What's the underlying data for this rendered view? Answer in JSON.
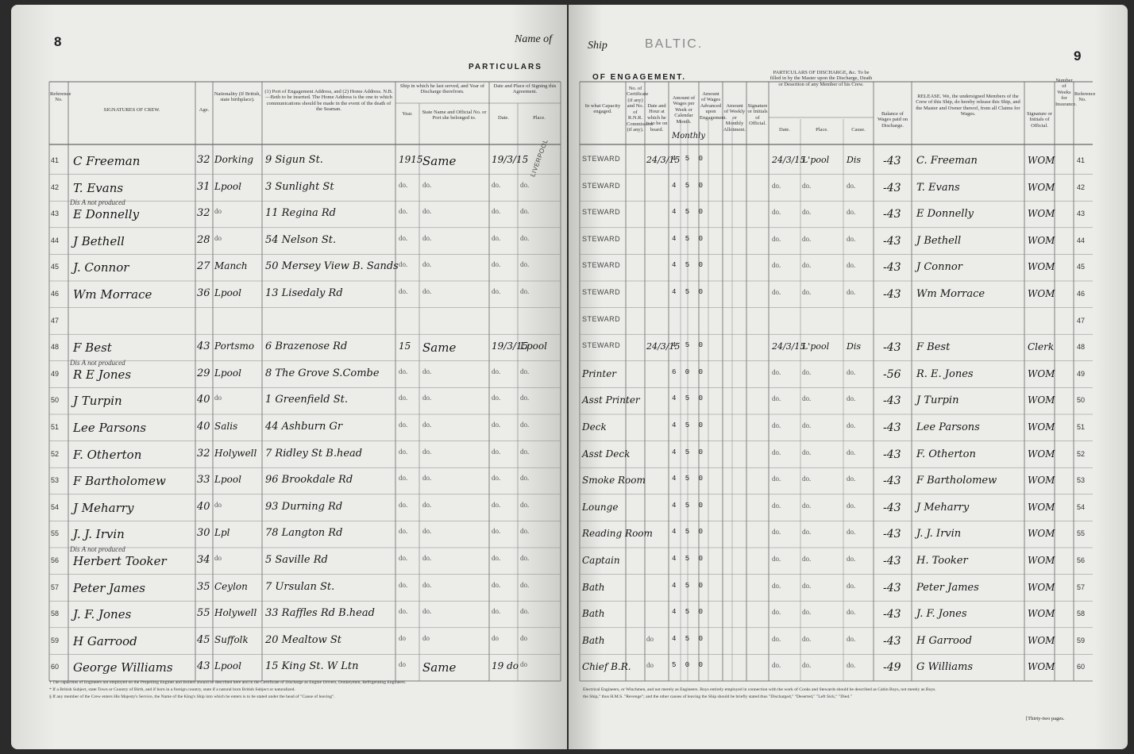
{
  "left_page": {
    "page_number": "8",
    "name_of": "Name of",
    "heading": "PARTICULARS",
    "column_headers": [
      "Reference No.",
      "SIGNATURES OF CREW.",
      "Age.",
      "Nationality (If British, state birthplace).",
      "(1) Port of Engagement Address, and (2) Home Address. N.B.—Both to be inserted. The Home Address is the one to which communications should be made in the event of the death of the Seaman.",
      "Ship in which he last served, and Year of Discharge therefrom.",
      "Date and Place of Signing this Agreement.",
      "Year.",
      "State Name and Official No. or Port she belonged to.",
      "Date.",
      "Place."
    ],
    "rows": [
      {
        "ref": "41",
        "name": "C Freeman",
        "age": "32",
        "nationality": "Dorking",
        "address": "9 Sigun St.",
        "year": "1915",
        "ship": "Same",
        "date": "19/3/15",
        "place": "LIVERPOOL"
      },
      {
        "ref": "42",
        "name": "T. Evans",
        "age": "31",
        "nationality": "Lpool",
        "address": "3 Sunlight St",
        "year": "do.",
        "ship": "do.",
        "date": "do.",
        "place": "do."
      },
      {
        "ref": "43",
        "note": "Dis A not produced",
        "name": "E Donnelly",
        "age": "32",
        "nationality": "do",
        "address": "11 Regina Rd",
        "year": "do.",
        "ship": "do.",
        "date": "do.",
        "place": "do."
      },
      {
        "ref": "44",
        "name": "J Bethell",
        "age": "28",
        "nationality": "do",
        "address": "54 Nelson St.",
        "year": "do.",
        "ship": "do.",
        "date": "do.",
        "place": "do."
      },
      {
        "ref": "45",
        "name": "J. Connor",
        "age": "27",
        "nationality": "Manch",
        "address": "50 Mersey View B. Sands",
        "year": "do.",
        "ship": "do.",
        "date": "do.",
        "place": "do."
      },
      {
        "ref": "46",
        "name": "Wm Morrace",
        "age": "36",
        "nationality": "Lpool",
        "address": "13 Lisedaly Rd",
        "year": "do.",
        "ship": "do.",
        "date": "do.",
        "place": "do."
      },
      {
        "ref": "47"
      },
      {
        "ref": "48",
        "name": "F Best",
        "age": "43",
        "nationality": "Portsmo",
        "address": "6 Brazenose Rd",
        "year": "15",
        "ship": "Same",
        "date": "19/3/15",
        "place": "Lpool"
      },
      {
        "ref": "49",
        "note": "Dis A not produced",
        "name": "R E Jones",
        "age": "29",
        "nationality": "Lpool",
        "address": "8 The Grove S.Combe",
        "year": "do.",
        "ship": "do.",
        "date": "do.",
        "place": "do."
      },
      {
        "ref": "50",
        "name": "J Turpin",
        "age": "40",
        "nationality": "do",
        "address": "1 Greenfield St.",
        "year": "do.",
        "ship": "do.",
        "date": "do.",
        "place": "do."
      },
      {
        "ref": "51",
        "name": "Lee Parsons",
        "age": "40",
        "nationality": "Salis",
        "address": "44 Ashburn Gr",
        "year": "do.",
        "ship": "do.",
        "date": "do.",
        "place": "do."
      },
      {
        "ref": "52",
        "name": "F. Otherton",
        "age": "32",
        "nationality": "Holywell",
        "address": "7 Ridley St B.head",
        "year": "do.",
        "ship": "do.",
        "date": "do.",
        "place": "do."
      },
      {
        "ref": "53",
        "name": "F Bartholomew",
        "age": "33",
        "nationality": "Lpool",
        "address": "96 Brookdale Rd",
        "year": "do.",
        "ship": "do.",
        "date": "do.",
        "place": "do."
      },
      {
        "ref": "54",
        "name": "J Meharry",
        "age": "40",
        "nationality": "do",
        "address": "93 Durning Rd",
        "year": "do.",
        "ship": "do.",
        "date": "do.",
        "place": "do."
      },
      {
        "ref": "55",
        "name": "J. J. Irvin",
        "age": "30",
        "nationality": "Lpl",
        "address": "78 Langton Rd",
        "year": "do.",
        "ship": "do.",
        "date": "do.",
        "place": "do."
      },
      {
        "ref": "56",
        "note": "Dis A not produced",
        "name": "Herbert Tooker",
        "age": "34",
        "nationality": "do",
        "address": "5 Saville Rd",
        "year": "do.",
        "ship": "do.",
        "date": "do.",
        "place": "do."
      },
      {
        "ref": "57",
        "name": "Peter James",
        "age": "35",
        "nationality": "Ceylon",
        "address": "7 Ursulan St.",
        "year": "do.",
        "ship": "do.",
        "date": "do.",
        "place": "do."
      },
      {
        "ref": "58",
        "name": "J. F. Jones",
        "age": "55",
        "nationality": "Holywell",
        "address": "33 Raffles Rd B.head",
        "year": "do.",
        "ship": "do.",
        "date": "do.",
        "place": "do."
      },
      {
        "ref": "59",
        "name": "H Garrood",
        "age": "45",
        "nationality": "Suffolk",
        "address": "20 Mealtow St",
        "year": "do",
        "ship": "do",
        "date": "do",
        "place": "do"
      },
      {
        "ref": "60",
        "name": "George Williams",
        "age": "43",
        "nationality": "Lpool",
        "address": "15 King St. W Ltn",
        "year": "do",
        "ship": "Same",
        "date": "19 do",
        "place": "do"
      }
    ],
    "footnotes": [
      "† The capacities of Engineers not employed on the Propelling Engines and Boilers should be described here and in the Certificate of Discharge as Engine Drivers, Donkeymen, Refrigerating Engineers.",
      "* If a British Subject, state Town or Country of Birth, and if born in a foreign country, state if a natural born British Subject or naturalized.",
      "§ If any member of the Crew enters His Majesty's Service, the Name of the King's Ship into which he enters is to be stated under the head of \"Cause of leaving\"."
    ]
  },
  "right_page": {
    "page_number": "9",
    "ship_label": "Ship",
    "ship_name": "BALTIC.",
    "heading": "OF ENGAGEMENT.",
    "column_headers": [
      "In what Capacity engaged.",
      "No. of Certificate (if any) and No. of R.N.R. Commission (if any).",
      "Date and Hour at which he is to be on board.",
      "Amount of Wages per Week or Calendar Month.",
      "Amount of Wages Advanced upon Engagement.",
      "Amount of Weekly or Monthly Allotment.",
      "Signature or Initials of Official.",
      "PARTICULARS OF DISCHARGE, &c. To be filled in by the Master upon the Discharge, Death or Desertion of any Member of his Crew.",
      "Date.",
      "Place.",
      "Cause.",
      "Balance of Wages paid on Discharge.",
      "RELEASE. We, the undersigned Members of the Crew of this Ship, do hereby release this Ship, and the Master and Owner thereof, from all Claims for Wages.",
      "Signature or Initials of Official.",
      "Number of Weeks for Insurance.",
      "Reference No."
    ],
    "wages_note": "Monthly",
    "rows": [
      {
        "capacity": "STEWARD",
        "date_hour": "24/3/15",
        "wages": "4 5 0",
        "d_date": "24/3/15",
        "d_place": "L'pool",
        "cause": "Dis",
        "balance": "-43",
        "release": "C. Freeman",
        "initials": "WOM"
      },
      {
        "capacity": "STEWARD",
        "wages": "4 5 0",
        "d_date": "do.",
        "d_place": "do.",
        "cause": "do.",
        "balance": "-43",
        "release": "T. Evans",
        "initials": "WOM"
      },
      {
        "capacity": "STEWARD",
        "wages": "4 5 0",
        "d_date": "do.",
        "d_place": "do.",
        "cause": "do.",
        "balance": "-43",
        "release": "E Donnelly",
        "initials": "WOM"
      },
      {
        "capacity": "STEWARD",
        "wages": "4 5 0",
        "d_date": "do.",
        "d_place": "do.",
        "cause": "do.",
        "balance": "-43",
        "release": "J Bethell",
        "initials": "WOM"
      },
      {
        "capacity": "STEWARD",
        "wages": "4 5 0",
        "d_date": "do.",
        "d_place": "do.",
        "cause": "do.",
        "balance": "-43",
        "release": "J Connor",
        "initials": "WOM"
      },
      {
        "capacity": "STEWARD",
        "wages": "4 5 0",
        "d_date": "do.",
        "d_place": "do.",
        "cause": "do.",
        "balance": "-43",
        "release": "Wm Morrace",
        "initials": "WOM"
      },
      {
        "capacity": "STEWARD"
      },
      {
        "capacity": "STEWARD",
        "date_hour": "24/3/15",
        "wages": "4 5 0",
        "d_date": "24/3/15",
        "d_place": "L'pool",
        "cause": "Dis",
        "balance": "-43",
        "release": "F Best",
        "initials": "Clerk"
      },
      {
        "capacity": "Printer",
        "wages": "6 0 0",
        "d_date": "do.",
        "d_place": "do.",
        "cause": "do.",
        "balance": "-56",
        "release": "R. E. Jones",
        "initials": "WOM"
      },
      {
        "capacity": "Asst Printer",
        "wages": "4 5 0",
        "d_date": "do.",
        "d_place": "do.",
        "cause": "do.",
        "balance": "-43",
        "release": "J Turpin",
        "initials": "WOM"
      },
      {
        "capacity": "Deck",
        "wages": "4 5 0",
        "d_date": "do.",
        "d_place": "do.",
        "cause": "do.",
        "balance": "-43",
        "release": "Lee Parsons",
        "initials": "WOM"
      },
      {
        "capacity": "Asst Deck",
        "wages": "4 5 0",
        "d_date": "do.",
        "d_place": "do.",
        "cause": "do.",
        "balance": "-43",
        "release": "F. Otherton",
        "initials": "WOM"
      },
      {
        "capacity": "Smoke Room",
        "wages": "4 5 0",
        "d_date": "do.",
        "d_place": "do.",
        "cause": "do.",
        "balance": "-43",
        "release": "F Bartholomew",
        "initials": "WOM"
      },
      {
        "capacity": "Lounge",
        "wages": "4 5 0",
        "d_date": "do.",
        "d_place": "do.",
        "cause": "do.",
        "balance": "-43",
        "release": "J Meharry",
        "initials": "WOM"
      },
      {
        "capacity": "Reading Room",
        "wages": "4 5 0",
        "d_date": "do.",
        "d_place": "do.",
        "cause": "do.",
        "balance": "-43",
        "release": "J. J. Irvin",
        "initials": "WOM"
      },
      {
        "capacity": "Captain",
        "wages": "4 5 0",
        "d_date": "do.",
        "d_place": "do.",
        "cause": "do.",
        "balance": "-43",
        "release": "H. Tooker",
        "initials": "WOM"
      },
      {
        "capacity": "Bath",
        "wages": "4 5 0",
        "d_date": "do.",
        "d_place": "do.",
        "cause": "do.",
        "balance": "-43",
        "release": "Peter James",
        "initials": "WOM"
      },
      {
        "capacity": "Bath",
        "wages": "4 5 0",
        "d_date": "do.",
        "d_place": "do.",
        "cause": "do.",
        "balance": "-43",
        "release": "J. F. Jones",
        "initials": "WOM"
      },
      {
        "capacity": "Bath",
        "date_hour": "do",
        "wages": "4 5 0",
        "d_date": "do.",
        "d_place": "do.",
        "cause": "do.",
        "balance": "-43",
        "release": "H Garrood",
        "initials": "WOM"
      },
      {
        "capacity": "Chief B.R.",
        "date_hour": "do",
        "wages": "5 0 0",
        "d_date": "do.",
        "d_place": "do.",
        "cause": "do.",
        "balance": "-49",
        "release": "G Williams",
        "initials": "WOM"
      }
    ],
    "footnotes": [
      "Electrical Engineers, or Winchmen, and not merely as Engineers. Boys entirely employed in connection with the work of Cooks and Stewards should be described as Cabin Boys, not merely as Boys.",
      "the Ship,\" thus H.M.S. \"Revenge\"; and the other causes of leaving the Ship should be briefly stated thus \"Discharged,\" \"Deserted,\" \"Left Sick,\" \"Died.\""
    ],
    "pages_note": "[Thirty-two pages."
  }
}
